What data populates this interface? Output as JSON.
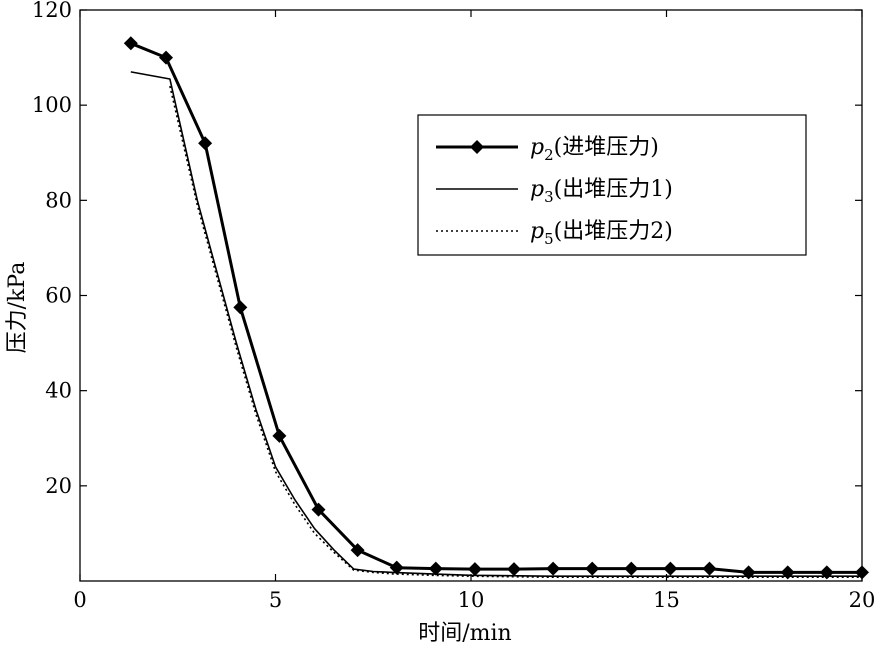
{
  "chart_data": {
    "type": "line",
    "xlabel": "时间/min",
    "ylabel": "压力/kPa",
    "xlim": [
      0,
      20
    ],
    "ylim": [
      0,
      120
    ],
    "xticks": [
      0,
      5,
      10,
      15,
      20
    ],
    "yticks": [
      20,
      40,
      60,
      80,
      100,
      120
    ],
    "xtick_labels": [
      "0",
      "5",
      "10",
      "15",
      "20"
    ],
    "ytick_labels": [
      "20",
      "40",
      "60",
      "80",
      "100",
      "120"
    ],
    "grid": false,
    "legend_position": "top-right",
    "series": [
      {
        "name": "p2(进堆压力)",
        "legend_symbol": "p",
        "legend_subscript": "2",
        "legend_suffix": "(进堆压力)",
        "style": "solid-thick-diamond",
        "color": "#000000",
        "x": [
          1.3,
          2.2,
          3.2,
          4.1,
          5.1,
          6.1,
          7.1,
          8.1,
          9.1,
          10.1,
          11.1,
          12.1,
          13.1,
          14.1,
          15.1,
          16.1,
          17.1,
          18.1,
          19.1,
          20.0
        ],
        "y": [
          113,
          110,
          92,
          57.5,
          30.5,
          15,
          6.5,
          2.8,
          2.6,
          2.5,
          2.5,
          2.6,
          2.6,
          2.6,
          2.6,
          2.6,
          1.8,
          1.8,
          1.8,
          1.8
        ]
      },
      {
        "name": "p3(出堆压力1)",
        "legend_symbol": "p",
        "legend_subscript": "3",
        "legend_suffix": "(出堆压力1)",
        "style": "solid-thin",
        "color": "#000000",
        "x": [
          1.3,
          2.3,
          3.0,
          3.5,
          4.0,
          4.5,
          5.0,
          5.5,
          6.0,
          6.5,
          7.0,
          7.5,
          8.0,
          9.0,
          10.0,
          12.0,
          14.0,
          16.0,
          18.0,
          20.0
        ],
        "y": [
          107,
          105.5,
          80,
          65,
          50,
          36,
          24,
          17,
          11,
          6.5,
          2.5,
          2.0,
          1.8,
          1.5,
          1.2,
          1.0,
          1.0,
          1.0,
          1.0,
          1.0
        ]
      },
      {
        "name": "p5(出堆压力2)",
        "legend_symbol": "p",
        "legend_subscript": "5",
        "legend_suffix": "(出堆压力2)",
        "style": "dotted",
        "color": "#000000",
        "x": [
          2.3,
          3.0,
          3.5,
          4.0,
          4.5,
          5.0,
          5.5,
          6.0,
          6.5,
          7.0,
          7.5,
          8.0,
          9.0,
          10.0,
          12.0,
          14.0,
          16.0,
          18.0,
          20.0
        ],
        "y": [
          104,
          79,
          64,
          49,
          35,
          23,
          16,
          10,
          6,
          2.3,
          1.8,
          1.5,
          1.2,
          1.0,
          0.8,
          0.8,
          0.8,
          0.8,
          0.8
        ]
      }
    ]
  }
}
